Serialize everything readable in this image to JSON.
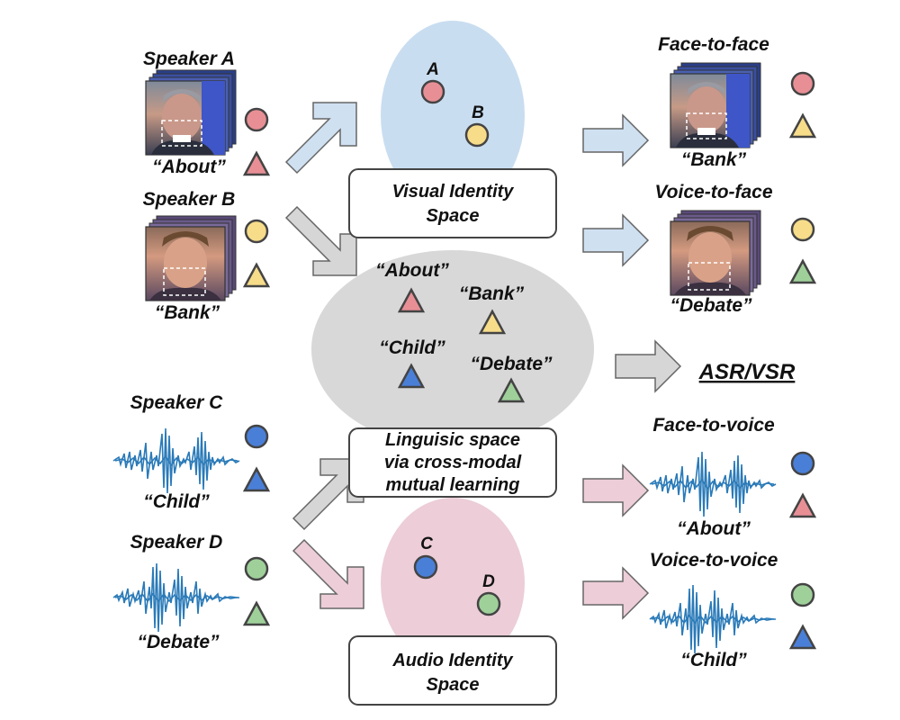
{
  "speakers": {
    "a": {
      "label": "Speaker A",
      "word": "“About”"
    },
    "b": {
      "label": "Speaker B",
      "word": "“Bank”"
    },
    "c": {
      "label": "Speaker C",
      "word": "“Child”"
    },
    "d": {
      "label": "Speaker D",
      "word": "“Debate”"
    }
  },
  "visual_space": {
    "title_line1": "Visual Identity",
    "title_line2": "Space",
    "point_a": "A",
    "point_b": "B"
  },
  "linguistic_space": {
    "title_line1": "Linguisic space",
    "title_line2": "via cross-modal",
    "title_line3": "mutual learning",
    "words": {
      "about": "“About”",
      "bank": "“Bank”",
      "child": "“Child”",
      "debate": "“Debate”"
    }
  },
  "audio_space": {
    "title_line1": "Audio Identity",
    "title_line2": "Space",
    "point_c": "C",
    "point_d": "D"
  },
  "outputs": {
    "face_to_face": {
      "label": "Face-to-face",
      "word": "“Bank”"
    },
    "voice_to_face": {
      "label": "Voice-to-face",
      "word": "“Debate”"
    },
    "asr_vsr": "ASR/VSR",
    "face_to_voice": {
      "label": "Face-to-voice",
      "word": "“About”"
    },
    "voice_to_voice": {
      "label": "Voice-to-voice",
      "word": "“Child”"
    }
  },
  "colors": {
    "speaker_a": "#e88f96",
    "speaker_b": "#f7dc8a",
    "speaker_c": "#4a7fd8",
    "speaker_d": "#9fd09a",
    "visual_space": "#c9ddf0",
    "linguistic_space": "#d8d8d8",
    "audio_space": "#eccdd8",
    "arrow_blue": "#cfe0f1",
    "arrow_gray": "#d6d6d6",
    "arrow_pink": "#eccdd8",
    "waveform": "#2a7ab8"
  },
  "icons": {
    "face_a": "male-face-frames-icon",
    "face_b": "male-face-frames-icon",
    "wave": "audio-waveform-icon",
    "identity_marker": "circle-icon",
    "word_marker": "triangle-icon"
  }
}
